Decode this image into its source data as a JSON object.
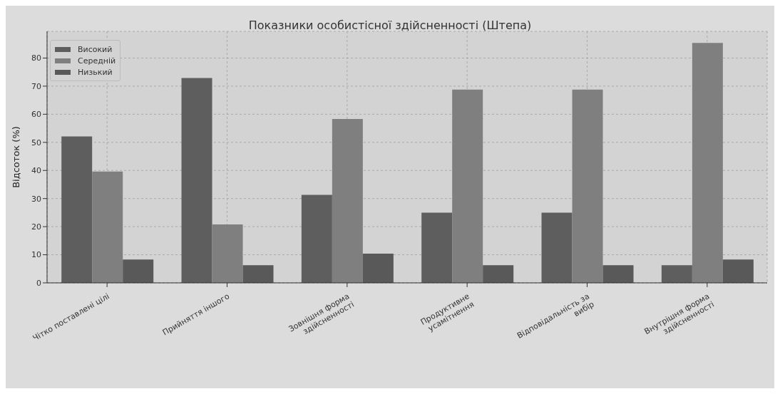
{
  "chart_data": {
    "type": "bar",
    "title": "Показники особистісної здійсненності (Штепа)",
    "ylabel": "Відсоток (%)",
    "categories": [
      "Чітко поставлені цілі",
      "Прийняття іншого",
      "Зовнішня форма\nздійсненності",
      "Продуктивне\nусамітнення",
      "Відповідальність за\nвибір",
      "Внутрішня форма\nздійсненності"
    ],
    "series": [
      {
        "name": "Високий",
        "color": "#5e5e5e",
        "values": [
          52.1,
          72.9,
          31.3,
          25,
          25,
          6.3
        ]
      },
      {
        "name": "Середній",
        "color": "#7f7f7f",
        "values": [
          39.6,
          20.8,
          58.3,
          68.8,
          68.8,
          85.4
        ]
      },
      {
        "name": "Низький",
        "color": "#595959",
        "values": [
          8.3,
          6.3,
          10.4,
          6.3,
          6.3,
          8.3
        ]
      }
    ],
    "ylim": [
      0,
      89.5
    ],
    "yticks": [
      0,
      10,
      20,
      30,
      40,
      50,
      60,
      70,
      80
    ],
    "grid": true,
    "legend": "top left"
  }
}
